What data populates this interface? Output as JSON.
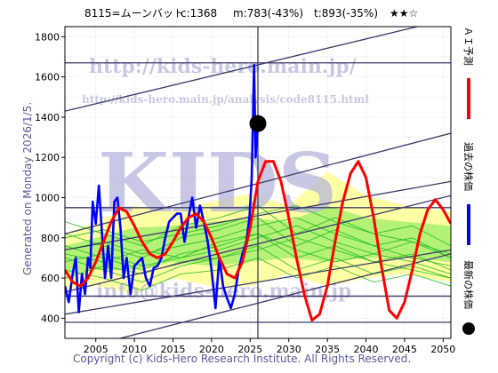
{
  "header": {
    "code_name": "8115=ムーンバット",
    "current": "c:1368",
    "model": "m:783(-43%)",
    "target": "t:893(-35%)",
    "stars": "★★☆"
  },
  "watermarks": {
    "url_main": "http://kids-hero.main.jp/",
    "url_analysis": "http://kids-hero.main.jp/analysis/code8115.html",
    "email": "info@kids-hero.main.jp",
    "big_logo": "KIDS"
  },
  "side_legend": {
    "ai_label": "ＡＩ予測",
    "past_label": "過去の株価",
    "latest_label": "最新の株価",
    "ai_color": "#ff0000",
    "past_color": "#0000ff",
    "latest_color": "#000000"
  },
  "generated_label": "Generated on Monday 2026/1/5.",
  "copyright": "Copyright (c) Kids-Hero Research Institute. All Rights Reserved.",
  "chart_data": {
    "type": "line",
    "xlim": [
      2001,
      2051
    ],
    "ylim": [
      300,
      1850
    ],
    "x_ticks": [
      2005,
      2010,
      2015,
      2020,
      2025,
      2030,
      2035,
      2040,
      2045,
      2050
    ],
    "y_ticks": [
      400,
      600,
      800,
      1000,
      1200,
      1400,
      1600,
      1800
    ],
    "grid": true,
    "horizontal_levels": [
      380,
      510,
      950,
      1670
    ],
    "current_marker": {
      "x": 2026.0,
      "y": 1368
    },
    "current_vline_x": 2026.0,
    "trend_lines": [
      {
        "x": [
          2001,
          2051
        ],
        "y": [
          1430,
          1890
        ]
      },
      {
        "x": [
          2001,
          2051
        ],
        "y": [
          820,
          1320
        ]
      },
      {
        "x": [
          2001,
          2051
        ],
        "y": [
          740,
          1080
        ]
      },
      {
        "x": [
          2001,
          2051
        ],
        "y": [
          530,
          1010
        ]
      },
      {
        "x": [
          2001,
          2051
        ],
        "y": [
          420,
          740
        ]
      },
      {
        "x": [
          2001,
          2051
        ],
        "y": [
          230,
          720
        ]
      }
    ],
    "band_outer": {
      "x": [
        2001,
        2005,
        2010,
        2015,
        2020,
        2025,
        2030,
        2035,
        2040,
        2045,
        2051
      ],
      "upper": [
        820,
        880,
        960,
        930,
        980,
        1020,
        960,
        1130,
        1010,
        960,
        930
      ],
      "lower": [
        540,
        560,
        520,
        600,
        560,
        560,
        620,
        560,
        600,
        620,
        580
      ]
    },
    "band_inner": {
      "x": [
        2001,
        2005,
        2010,
        2015,
        2020,
        2025,
        2030,
        2035,
        2040,
        2045,
        2051
      ],
      "upper": [
        760,
        800,
        850,
        860,
        880,
        900,
        880,
        960,
        900,
        880,
        860
      ],
      "lower": [
        620,
        640,
        640,
        680,
        660,
        680,
        700,
        680,
        700,
        700,
        680
      ]
    },
    "series": [
      {
        "name": "過去の株価",
        "color": "#0000ff",
        "x": [
          2001.0,
          2001.5,
          2002.0,
          2002.4,
          2002.8,
          2003.2,
          2003.6,
          2004.0,
          2004.3,
          2004.6,
          2005.0,
          2005.4,
          2005.8,
          2006.2,
          2006.6,
          2007.0,
          2007.4,
          2007.8,
          2008.2,
          2008.6,
          2009.0,
          2009.5,
          2010.0,
          2010.5,
          2011.0,
          2011.5,
          2012.0,
          2012.5,
          2013.0,
          2013.5,
          2014.0,
          2014.5,
          2015.0,
          2015.5,
          2016.0,
          2016.5,
          2017.0,
          2017.5,
          2018.0,
          2018.5,
          2019.0,
          2019.5,
          2020.0,
          2020.5,
          2021.0,
          2021.5,
          2022.0,
          2022.5,
          2023.0,
          2023.5,
          2024.0,
          2024.5,
          2024.9,
          2025.2,
          2025.5,
          2025.7,
          2026.0
        ],
        "y": [
          560,
          480,
          620,
          700,
          430,
          620,
          520,
          700,
          650,
          980,
          870,
          1060,
          820,
          600,
          760,
          600,
          980,
          1000,
          850,
          600,
          700,
          520,
          660,
          680,
          700,
          600,
          560,
          650,
          660,
          700,
          800,
          880,
          900,
          920,
          920,
          780,
          900,
          1000,
          850,
          960,
          880,
          780,
          640,
          450,
          700,
          560,
          500,
          450,
          520,
          640,
          720,
          780,
          900,
          1100,
          1660,
          1200,
          1368
        ]
      },
      {
        "name": "ＡＩ予測",
        "color": "#ff0000",
        "x": [
          2001.0,
          2002.0,
          2003.0,
          2004.0,
          2005.0,
          2006.0,
          2007.0,
          2008.0,
          2009.0,
          2010.0,
          2011.0,
          2012.0,
          2013.0,
          2014.0,
          2015.0,
          2016.0,
          2017.0,
          2018.0,
          2019.0,
          2020.0,
          2021.0,
          2022.0,
          2023.0,
          2024.0,
          2025.0,
          2026.0,
          2027.0,
          2028.0,
          2029.0,
          2030.0,
          2031.0,
          2032.0,
          2033.0,
          2034.0,
          2035.0,
          2036.0,
          2037.0,
          2038.0,
          2039.0,
          2040.0,
          2041.0,
          2042.0,
          2043.0,
          2044.0,
          2045.0,
          2046.0,
          2047.0,
          2048.0,
          2049.0,
          2050.0,
          2051.0
        ],
        "y": [
          640,
          580,
          560,
          600,
          680,
          780,
          880,
          950,
          930,
          860,
          780,
          720,
          700,
          720,
          780,
          850,
          900,
          920,
          880,
          800,
          700,
          620,
          600,
          680,
          850,
          1080,
          1180,
          1180,
          1080,
          900,
          700,
          520,
          390,
          420,
          560,
          780,
          980,
          1120,
          1180,
          1100,
          900,
          660,
          440,
          400,
          480,
          640,
          820,
          940,
          990,
          940,
          870
        ]
      }
    ],
    "scenario_lines": {
      "color": "#22bb22",
      "x": [
        2001,
        2006,
        2011,
        2016,
        2021,
        2026,
        2031,
        2036,
        2041,
        2046,
        2051
      ],
      "lines": [
        [
          760,
          700,
          640,
          720,
          760,
          820,
          700,
          760,
          680,
          720,
          640
        ],
        [
          820,
          760,
          700,
          800,
          840,
          900,
          760,
          840,
          760,
          800,
          700
        ],
        [
          700,
          640,
          580,
          660,
          700,
          760,
          640,
          700,
          620,
          660,
          600
        ],
        [
          880,
          820,
          760,
          860,
          900,
          960,
          820,
          900,
          820,
          860,
          760
        ],
        [
          640,
          600,
          540,
          620,
          640,
          700,
          600,
          660,
          580,
          620,
          560
        ],
        [
          740,
          780,
          720,
          760,
          800,
          860,
          900,
          820,
          760,
          700,
          660
        ],
        [
          680,
          720,
          660,
          700,
          740,
          800,
          860,
          780,
          720,
          680,
          620
        ],
        [
          800,
          840,
          780,
          820,
          860,
          920,
          960,
          880,
          820,
          780,
          720
        ],
        [
          600,
          660,
          620,
          680,
          700,
          740,
          800,
          740,
          680,
          640,
          600
        ],
        [
          720,
          680,
          740,
          700,
          780,
          820,
          740,
          680,
          720,
          780,
          700
        ]
      ]
    }
  }
}
